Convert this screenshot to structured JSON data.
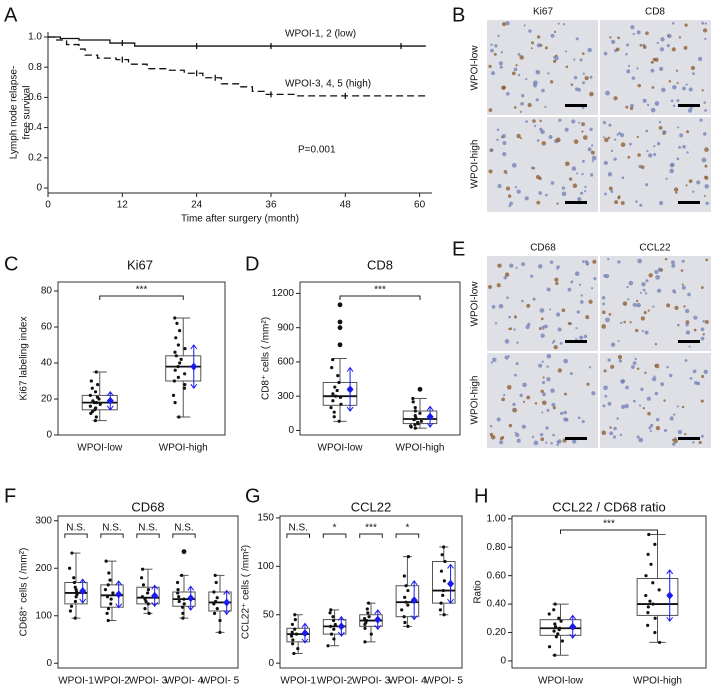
{
  "chart_data": [
    {
      "panel": "A",
      "type": "km",
      "xlabel": "Time after surgery (month)",
      "ylabel": [
        "Lymph node relapse-",
        "free survival"
      ],
      "xlim": [
        0,
        62
      ],
      "xticks": [
        0,
        12,
        24,
        36,
        48,
        60
      ],
      "ylim": [
        0,
        1
      ],
      "yticks": [
        0,
        0.2,
        0.4,
        0.6,
        0.8,
        {
          "value": 1,
          "label": "1.0"
        }
      ],
      "series": [
        {
          "name": "WPOI-1, 2 (low)",
          "style": "solid",
          "x": [
            0,
            2,
            5,
            10,
            14,
            61
          ],
          "values": [
            1,
            0.99,
            0.98,
            0.96,
            0.94,
            0.94
          ],
          "censored": [
            12,
            24,
            36,
            57
          ]
        },
        {
          "name": "WPOI-3, 4, 5 (high)",
          "style": "dashed",
          "x": [
            0,
            1,
            3,
            5,
            6,
            8,
            11,
            13,
            16,
            19,
            22,
            25,
            28,
            31,
            33,
            35,
            40,
            50,
            61
          ],
          "values": [
            1,
            0.98,
            0.95,
            0.92,
            0.88,
            0.86,
            0.85,
            0.82,
            0.79,
            0.78,
            0.76,
            0.73,
            0.69,
            0.67,
            0.64,
            0.62,
            0.61,
            0.61,
            0.61
          ],
          "censored": [
            12,
            24,
            27,
            36,
            48
          ]
        }
      ],
      "annotation": "P=0.001"
    },
    {
      "panel": "C",
      "type": "box",
      "title": "Ki67",
      "ylabel": "Ki67 labeling index",
      "ylim": [
        0,
        85
      ],
      "yticks": [
        0,
        20,
        40,
        60,
        80
      ],
      "categories": [
        "WPOI-low",
        "WPOI-high"
      ],
      "color": "#1a1aee",
      "significance": [
        "***"
      ],
      "boxes": [
        {
          "min": 8,
          "q1": 14,
          "median": 18,
          "q3": 22,
          "max": 35,
          "mean": 19,
          "sd": 5,
          "points": [
            8,
            10,
            12,
            13,
            14,
            15,
            16,
            17,
            18,
            18,
            19,
            20,
            21,
            22,
            24,
            26,
            28,
            30,
            35
          ],
          "outliers": []
        },
        {
          "min": 10,
          "q1": 30,
          "median": 38,
          "q3": 44,
          "max": 65,
          "mean": 38,
          "sd": 12,
          "points": [
            10,
            18,
            22,
            26,
            28,
            30,
            32,
            34,
            36,
            38,
            40,
            42,
            44,
            46,
            48,
            50,
            54,
            58,
            62,
            65
          ],
          "outliers": []
        }
      ]
    },
    {
      "panel": "D",
      "type": "box",
      "title": "CD8",
      "ylabel": "CD8⁺ cells ( /mm²)",
      "ylim": [
        -40,
        1300
      ],
      "yticks": [
        0,
        300,
        600,
        900,
        1200
      ],
      "categories": [
        "WPOI-low",
        "WPOI-high"
      ],
      "color": "#1a1aee",
      "significance": [
        "***"
      ],
      "boxes": [
        {
          "min": 80,
          "q1": 220,
          "median": 300,
          "q3": 420,
          "max": 630,
          "mean": 360,
          "sd": 190,
          "points": [
            80,
            120,
            160,
            200,
            230,
            260,
            290,
            300,
            320,
            350,
            380,
            420,
            480,
            550,
            620
          ],
          "outliers": [
            750,
            900,
            950,
            1100
          ]
        },
        {
          "min": 20,
          "q1": 60,
          "median": 100,
          "q3": 170,
          "max": 280,
          "mean": 120,
          "sd": 90,
          "points": [
            20,
            30,
            40,
            50,
            60,
            70,
            80,
            95,
            100,
            110,
            130,
            150,
            170,
            200,
            250,
            280
          ],
          "outliers": [
            360
          ]
        }
      ]
    },
    {
      "panel": "F",
      "type": "box",
      "title": "CD68",
      "ylabel": "CD68⁺ cells ( /mm²)",
      "ylim": [
        -10,
        310
      ],
      "yticks": [
        0,
        100,
        200,
        300
      ],
      "categories": [
        "WPOI-1",
        "WPOI-2",
        "WPOI- 3",
        "WPOI- 4",
        "WPOI- 5"
      ],
      "color": "#1a1aee",
      "significance": [
        "N.S.",
        "N.S.",
        "N.S.",
        "N.S."
      ],
      "boxes": [
        {
          "min": 95,
          "q1": 125,
          "median": 148,
          "q3": 170,
          "max": 232,
          "mean": 152,
          "sd": 25,
          "points": [
            95,
            110,
            120,
            130,
            140,
            145,
            150,
            155,
            160,
            170,
            180,
            200,
            232
          ],
          "outliers": []
        },
        {
          "min": 90,
          "q1": 118,
          "median": 143,
          "q3": 165,
          "max": 215,
          "mean": 145,
          "sd": 28,
          "points": [
            90,
            105,
            115,
            125,
            135,
            140,
            148,
            155,
            165,
            175,
            190,
            215
          ],
          "outliers": []
        },
        {
          "min": 105,
          "q1": 125,
          "median": 138,
          "q3": 160,
          "max": 198,
          "mean": 142,
          "sd": 22,
          "points": [
            105,
            115,
            125,
            130,
            135,
            140,
            148,
            155,
            165,
            180,
            198
          ],
          "outliers": []
        },
        {
          "min": 95,
          "q1": 120,
          "median": 135,
          "q3": 150,
          "max": 185,
          "mean": 137,
          "sd": 25,
          "points": [
            95,
            105,
            118,
            125,
            130,
            135,
            140,
            148,
            155,
            170,
            185
          ],
          "outliers": [
            235
          ]
        },
        {
          "min": 65,
          "q1": 110,
          "median": 128,
          "q3": 150,
          "max": 185,
          "mean": 128,
          "sd": 25,
          "points": [
            65,
            90,
            105,
            115,
            125,
            130,
            138,
            150,
            170,
            185
          ],
          "outliers": []
        }
      ]
    },
    {
      "panel": "G",
      "type": "box",
      "title": "CCL22",
      "ylabel": "CCL22⁺ cells ( /mm²)",
      "ylim": [
        -5,
        152
      ],
      "yticks": [
        0,
        50,
        100,
        150
      ],
      "categories": [
        "WPOI-1",
        "WPOI-2",
        "WPOI- 3",
        "WPOI- 4",
        "WPOI- 5"
      ],
      "color": "#1a1aee",
      "significance": [
        "N.S.",
        "*",
        "***",
        "*"
      ],
      "boxes": [
        {
          "min": 10,
          "q1": 22,
          "median": 30,
          "q3": 36,
          "max": 50,
          "mean": 31,
          "sd": 10,
          "points": [
            10,
            15,
            20,
            24,
            28,
            30,
            32,
            35,
            40,
            45,
            50
          ],
          "outliers": []
        },
        {
          "min": 18,
          "q1": 30,
          "median": 38,
          "q3": 45,
          "max": 55,
          "mean": 38,
          "sd": 10,
          "points": [
            18,
            25,
            30,
            35,
            38,
            40,
            44,
            48,
            52,
            55
          ],
          "outliers": []
        },
        {
          "min": 22,
          "q1": 38,
          "median": 44,
          "q3": 50,
          "max": 62,
          "mean": 45,
          "sd": 10,
          "points": [
            22,
            30,
            36,
            40,
            42,
            44,
            46,
            48,
            52,
            56,
            62
          ],
          "outliers": []
        },
        {
          "min": 38,
          "q1": 48,
          "median": 63,
          "q3": 80,
          "max": 110,
          "mean": 65,
          "sd": 20,
          "points": [
            38,
            42,
            48,
            55,
            60,
            63,
            68,
            75,
            80,
            90,
            110
          ],
          "outliers": []
        },
        {
          "min": 50,
          "q1": 62,
          "median": 75,
          "q3": 105,
          "max": 120,
          "mean": 82,
          "sd": 20,
          "points": [
            50,
            55,
            62,
            70,
            75,
            85,
            95,
            105,
            112,
            120
          ],
          "outliers": []
        }
      ]
    },
    {
      "panel": "H",
      "type": "box",
      "title": "CCL22 / CD68 ratio",
      "ylabel": "Ratio",
      "ylim": [
        -0.05,
        1.02
      ],
      "yticks": [
        0,
        {
          "value": 0.2,
          "label": "0.20"
        },
        {
          "value": 0.4,
          "label": "0.40"
        },
        {
          "value": 0.6,
          "label": "0.60"
        },
        {
          "value": 0.8,
          "label": "0.80"
        },
        {
          "value": 1,
          "label": "1.00"
        }
      ],
      "categories": [
        "WPOI-low",
        "WPOI-high"
      ],
      "color": "#1a1aee",
      "significance": [
        "***"
      ],
      "boxes": [
        {
          "min": 0.04,
          "q1": 0.18,
          "median": 0.23,
          "q3": 0.29,
          "max": 0.4,
          "mean": 0.24,
          "sd": 0.08,
          "points": [
            0.04,
            0.1,
            0.14,
            0.17,
            0.19,
            0.21,
            0.22,
            0.23,
            0.24,
            0.26,
            0.28,
            0.3,
            0.33,
            0.36,
            0.4
          ],
          "outliers": []
        },
        {
          "min": 0.13,
          "q1": 0.32,
          "median": 0.4,
          "q3": 0.58,
          "max": 0.89,
          "mean": 0.46,
          "sd": 0.18,
          "points": [
            0.13,
            0.2,
            0.25,
            0.3,
            0.34,
            0.38,
            0.4,
            0.42,
            0.46,
            0.5,
            0.55,
            0.6,
            0.68,
            0.75,
            0.82,
            0.89
          ],
          "outliers": []
        }
      ]
    }
  ],
  "images": [
    {
      "panel": "B",
      "columns": [
        "Ki67",
        "CD8"
      ],
      "rows": [
        "WPOI-low",
        "WPOI-high"
      ]
    },
    {
      "panel": "E",
      "columns": [
        "CD68",
        "CCL22"
      ],
      "rows": [
        "WPOI-low",
        "WPOI-high"
      ]
    }
  ]
}
